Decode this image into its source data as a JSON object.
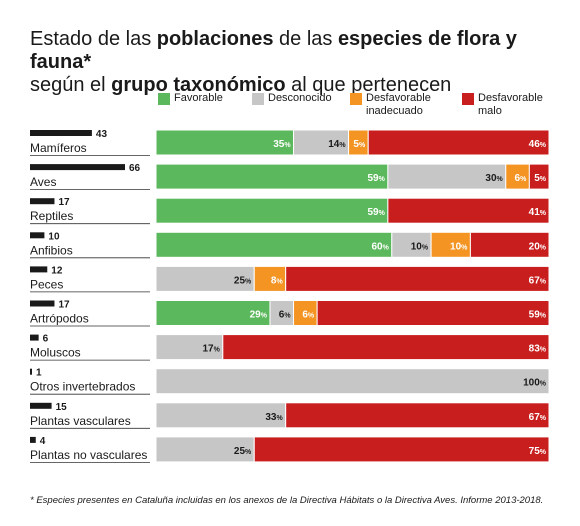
{
  "title": {
    "line1_a": "Estado de las ",
    "line1_b": "poblaciones",
    "line1_c": " de las ",
    "line1_d": "especies de flora y fauna*",
    "line2_a": "según el ",
    "line2_b": "grupo taxonómico",
    "line2_c": " al que pertenecen"
  },
  "legend": [
    {
      "label": "Favorable",
      "color": "#5cb85c"
    },
    {
      "label": "Desconocido",
      "color": "#c6c6c6"
    },
    {
      "label": "Desfavorable inadecuado",
      "line1": "Desfavorable",
      "line2": "inadecuado",
      "color": "#f39423"
    },
    {
      "label": "Desfavorable malo",
      "line1": "Desfavorable",
      "line2": "malo",
      "color": "#c81e1e"
    }
  ],
  "footnote": "* Especies presentes en Cataluña incluidas en los anexos de la Directiva Hábitats o la Directiva Aves. Informe 2013-2018.",
  "chart_data": {
    "type": "bar",
    "stacked": "100%",
    "orientation": "horizontal",
    "categories": [
      "Mamíferos",
      "Aves",
      "Reptiles",
      "Anfibios",
      "Peces",
      "Artrópodos",
      "Moluscos",
      "Otros invertebrados",
      "Plantas vasculares",
      "Plantas no vasculares"
    ],
    "species_counts": [
      43,
      66,
      17,
      10,
      12,
      17,
      6,
      1,
      15,
      4
    ],
    "series": [
      {
        "name": "Favorable",
        "color": "#5cb85c",
        "values": [
          35,
          59,
          59,
          60,
          0,
          29,
          0,
          0,
          0,
          0
        ]
      },
      {
        "name": "Desconocido",
        "color": "#c6c6c6",
        "values": [
          14,
          30,
          0,
          10,
          25,
          6,
          17,
          100,
          33,
          25
        ]
      },
      {
        "name": "Desfavorable inadecuado",
        "color": "#f39423",
        "values": [
          5,
          6,
          0,
          10,
          8,
          6,
          0,
          0,
          0,
          0
        ]
      },
      {
        "name": "Desfavorable malo",
        "color": "#c81e1e",
        "values": [
          46,
          5,
          41,
          20,
          67,
          59,
          83,
          0,
          67,
          75
        ]
      }
    ],
    "xlim": [
      0,
      100
    ],
    "count_max": 66,
    "legend_position": "top"
  }
}
